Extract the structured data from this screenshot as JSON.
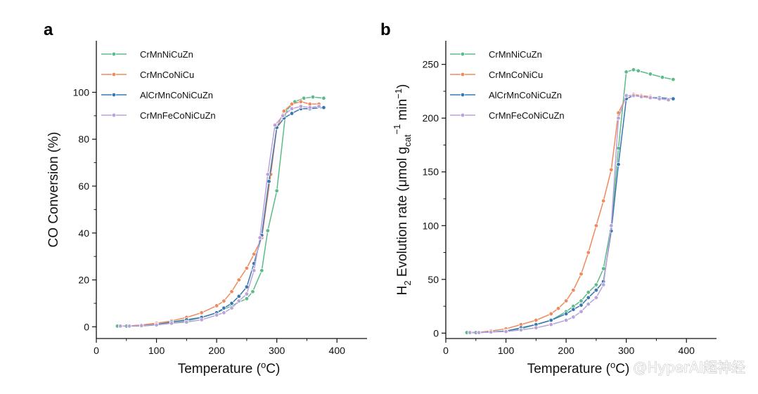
{
  "watermark": "@HyperAI超神经",
  "chart_data": [
    {
      "type": "line",
      "panel_label": "a",
      "xlabel": "Temperature (°C)",
      "ylabel": "CO Conversion (%)",
      "xlim": [
        0,
        450
      ],
      "ylim": [
        -5,
        122
      ],
      "xticks": [
        0,
        100,
        200,
        300,
        400
      ],
      "yticks": [
        0,
        20,
        40,
        60,
        80,
        100
      ],
      "grid": false,
      "legend_position": "top-left",
      "series": [
        {
          "name": "CrMnNiCuZn",
          "color": "#5dbb8a",
          "x": [
            35,
            50,
            75,
            100,
            125,
            150,
            175,
            200,
            225,
            250,
            260,
            275,
            285,
            300,
            315,
            330,
            345,
            360,
            378
          ],
          "y": [
            0.3,
            0.3,
            0.3,
            0.8,
            1.5,
            2.5,
            4,
            6,
            9,
            12,
            15,
            24,
            41,
            58,
            92,
            96,
            97.5,
            98,
            97.5
          ]
        },
        {
          "name": "CrMnCoNiCu",
          "color": "#ef8a5e",
          "x": [
            40,
            55,
            75,
            100,
            125,
            150,
            175,
            200,
            212,
            225,
            237,
            250,
            262,
            275,
            290,
            300,
            312,
            325,
            340,
            355,
            370
          ],
          "y": [
            0.3,
            0.4,
            0.8,
            1.5,
            2.5,
            4,
            6,
            9,
            11,
            15,
            20,
            25,
            31,
            38,
            65,
            85,
            92,
            95,
            96,
            95,
            95
          ]
        },
        {
          "name": "AlCrMnCoNiCuZn",
          "color": "#3a76b0",
          "x": [
            40,
            55,
            75,
            100,
            125,
            150,
            175,
            200,
            212,
            225,
            237,
            250,
            262,
            275,
            287,
            300,
            312,
            325,
            340,
            355,
            378
          ],
          "y": [
            0.3,
            0.3,
            0.5,
            1,
            2,
            3,
            4,
            6,
            8,
            10,
            13,
            17,
            27,
            39,
            62,
            85,
            89,
            91,
            93,
            93,
            93.5
          ]
        },
        {
          "name": "CrMnFeCoNiCuZn",
          "color": "#b9a3d8",
          "x": [
            40,
            55,
            75,
            100,
            125,
            150,
            175,
            200,
            212,
            225,
            237,
            250,
            262,
            272,
            285,
            297,
            310,
            325,
            340,
            355,
            370
          ],
          "y": [
            0.3,
            0.3,
            0.5,
            0.8,
            1.5,
            2,
            3,
            5,
            6,
            8,
            11,
            14,
            24,
            38,
            65,
            86,
            90,
            93,
            94,
            93.5,
            94
          ]
        }
      ]
    },
    {
      "type": "line",
      "panel_label": "b",
      "xlabel": "Temperature (°C)",
      "ylabel": "H2 Evolution rate (μmol gcat−1 min−1)",
      "xlim": [
        0,
        450
      ],
      "ylim": [
        -5,
        272
      ],
      "xticks": [
        0,
        100,
        200,
        300,
        400
      ],
      "yticks": [
        0,
        50,
        100,
        150,
        200,
        250
      ],
      "grid": false,
      "legend_position": "top-left",
      "series": [
        {
          "name": "CrMnNiCuZn",
          "color": "#5dbb8a",
          "x": [
            35,
            50,
            75,
            100,
            125,
            150,
            175,
            200,
            212,
            225,
            237,
            250,
            262,
            275,
            287,
            300,
            312,
            320,
            340,
            360,
            378
          ],
          "y": [
            0.5,
            0.5,
            1,
            2,
            4,
            8,
            12,
            20,
            25,
            30,
            38,
            45,
            60,
            100,
            172,
            243,
            245,
            244,
            241,
            238,
            236
          ]
        },
        {
          "name": "CrMnCoNiCu",
          "color": "#ef8a5e",
          "x": [
            40,
            55,
            75,
            100,
            125,
            150,
            175,
            187,
            200,
            212,
            225,
            237,
            250,
            262,
            275,
            287,
            300,
            312,
            325,
            340
          ],
          "y": [
            0.5,
            0.8,
            2,
            4,
            8,
            12,
            18,
            23,
            30,
            40,
            55,
            75,
            100,
            123,
            152,
            205,
            220,
            222,
            221,
            220
          ]
        },
        {
          "name": "AlCrMnCoNiCuZn",
          "color": "#3a76b0",
          "x": [
            40,
            55,
            75,
            100,
            125,
            150,
            175,
            200,
            212,
            225,
            237,
            250,
            262,
            275,
            287,
            300,
            312,
            325,
            340,
            355,
            378
          ],
          "y": [
            0.5,
            0.5,
            1,
            2,
            5,
            8,
            12,
            18,
            22,
            26,
            33,
            40,
            48,
            95,
            157,
            218,
            221,
            220,
            219,
            219,
            218
          ]
        },
        {
          "name": "CrMnFeCoNiCuZn",
          "color": "#b9a3d8",
          "x": [
            40,
            55,
            75,
            100,
            125,
            150,
            175,
            200,
            212,
            225,
            237,
            250,
            262,
            275,
            287,
            300,
            312,
            325,
            340,
            355,
            370
          ],
          "y": [
            0.5,
            0.5,
            1,
            1.5,
            3,
            5,
            8,
            12,
            15,
            20,
            27,
            33,
            45,
            100,
            200,
            221,
            221,
            220,
            219,
            218,
            217
          ]
        }
      ]
    }
  ]
}
